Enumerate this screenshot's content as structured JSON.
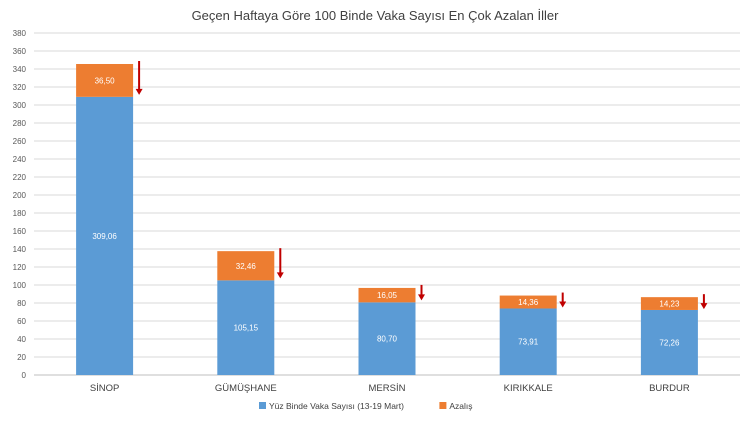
{
  "chart_data": {
    "type": "bar",
    "stacked": true,
    "title": "Geçen Haftaya Göre 100 Binde Vaka Sayısı En Çok Azalan İller",
    "categories": [
      "SİNOP",
      "GÜMÜŞHANE",
      "MERSİN",
      "KIRIKKALE",
      "BURDUR"
    ],
    "series": [
      {
        "name": "Yüz Binde Vaka Sayısı (13-19 Mart)",
        "color": "#5b9bd5",
        "values": [
          309.06,
          105.15,
          80.7,
          73.91,
          72.26
        ],
        "labels": [
          "309,06",
          "105,15",
          "80,70",
          "73,91",
          "72,26"
        ]
      },
      {
        "name": "Azalış",
        "color": "#ed7d31",
        "values": [
          36.5,
          32.46,
          16.05,
          14.36,
          14.23
        ],
        "labels": [
          "36,50",
          "32,46",
          "16,05",
          "14,36",
          "14,23"
        ]
      }
    ],
    "ylim": [
      0,
      380
    ],
    "yticks": [
      "0",
      "20",
      "40",
      "60",
      "80",
      "100",
      "120",
      "140",
      "160",
      "180",
      "200",
      "220",
      "240",
      "260",
      "280",
      "300",
      "320",
      "340",
      "360",
      "380"
    ],
    "grid": true,
    "legend_position": "bottom",
    "decrease_arrow_color": "#c00000"
  }
}
